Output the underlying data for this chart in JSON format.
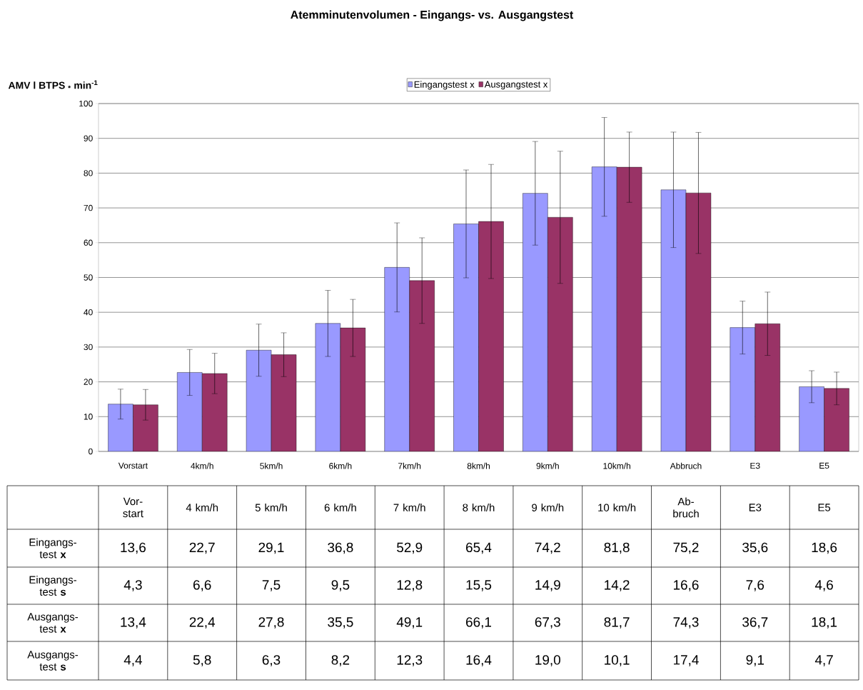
{
  "chart_data": {
    "type": "bar",
    "title": "Atemminutenvolumen -  Eingangs- vs. Ausgangstest",
    "ylabel": "AMV l BTPS $_{*}$ min$^{-1}$",
    "categories": [
      "Vorstart",
      "4km/h",
      "5km/h",
      "6km/h",
      "7km/h",
      "8km/h",
      "9km/h",
      "10km/h",
      "Abbruch",
      "E3",
      "E5"
    ],
    "series": [
      {
        "name": "Eingangstest  x",
        "color": "#9999ff",
        "values": [
          13.6,
          22.7,
          29.1,
          36.8,
          52.9,
          65.4,
          74.2,
          81.8,
          75.2,
          35.6,
          18.6
        ],
        "errors": [
          4.3,
          6.6,
          7.5,
          9.5,
          12.8,
          15.5,
          14.9,
          14.2,
          16.6,
          7.6,
          4.6
        ],
        "value_labels": [
          "13,6",
          "22,7",
          "29,1",
          "36,8",
          "52,9",
          "65,4",
          "74,2",
          "81,8",
          "75,2",
          "35,6",
          "18,6"
        ]
      },
      {
        "name": "Ausgangstest x",
        "color": "#993366",
        "values": [
          13.4,
          22.4,
          27.8,
          35.5,
          49.1,
          66.1,
          67.3,
          81.7,
          74.3,
          36.7,
          18.1
        ],
        "errors": [
          4.4,
          5.8,
          6.3,
          8.2,
          12.3,
          16.4,
          19.0,
          10.1,
          17.4,
          9.1,
          4.7
        ],
        "value_labels": [
          "13,4",
          "22,4",
          "27,8",
          "35,5",
          "49,1",
          "66,1",
          "67,3",
          "81,7",
          "74,3",
          "36,7",
          "18,1"
        ]
      }
    ],
    "annotations": [
      "Vor-start",
      "4 km/h",
      "5 km/h",
      "6 km/h",
      "7 km/h",
      "8 km/h",
      "9 km/h",
      "10 km/h",
      "Ab-bruch",
      "E3",
      "E5",
      "Eingangs-test **x**",
      "Eingangs-test **s**",
      "Ausgangs-test **x**",
      "Ausgangs-test **s**",
      "4,3",
      "6,6",
      "7,5",
      "9,5",
      "12,8",
      "15,5",
      "14,9",
      "14,2",
      "16,6",
      "7,6",
      "4,6",
      "4,4",
      "5,8",
      "6,3",
      "8,2",
      "12,3",
      "16,4",
      "19,0",
      "10,1",
      "17,4",
      "9,1",
      "4,7"
    ],
    "ylim": [
      0,
      100
    ],
    "yticks": [
      0,
      10,
      20,
      30,
      40,
      50,
      60,
      70,
      80,
      90,
      100
    ],
    "grid": "y",
    "legend": "top"
  }
}
